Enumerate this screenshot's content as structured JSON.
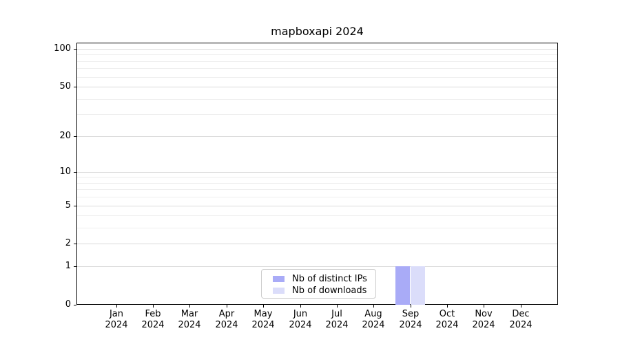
{
  "title": "mapboxapi 2024",
  "chart_data": {
    "type": "bar",
    "title": "mapboxapi 2024",
    "categories": [
      "Jan 2024",
      "Feb 2024",
      "Mar 2024",
      "Apr 2024",
      "May 2024",
      "Jun 2024",
      "Jul 2024",
      "Aug 2024",
      "Sep 2024",
      "Oct 2024",
      "Nov 2024",
      "Dec 2024"
    ],
    "series": [
      {
        "name": "Nb of distinct IPs",
        "color": "#a9abf7",
        "values": [
          0,
          0,
          0,
          0,
          0,
          0,
          0,
          0,
          1,
          0,
          0,
          0
        ]
      },
      {
        "name": "Nb of downloads",
        "color": "#dbddfa",
        "values": [
          0,
          0,
          0,
          0,
          0,
          0,
          0,
          0,
          1,
          0,
          0,
          0
        ]
      }
    ],
    "xlabel": "",
    "ylabel": "",
    "yscale": "log1p",
    "ylim": [
      0,
      112
    ],
    "yticks": [
      0,
      1,
      2,
      5,
      10,
      20,
      50,
      100
    ],
    "yticks_minor": [
      3,
      4,
      6,
      7,
      8,
      9,
      30,
      40,
      60,
      70,
      80,
      90
    ],
    "grid": "horizontal major and minor gridlines",
    "legend_position": "lower center",
    "bar_layout": "two bars per category, each 0.4 of slot width, group centered on tick"
  },
  "legend": {
    "items": [
      {
        "label": "Nb of distinct IPs",
        "swatch_color": "#a9abf7"
      },
      {
        "label": "Nb of downloads",
        "swatch_color": "#dbddfa"
      }
    ]
  },
  "colors": {
    "background": "#ffffff",
    "spine": "#000000",
    "grid_major": "#d9d9d9",
    "grid_minor": "#eeeeee",
    "text": "#000000",
    "legend_border": "#cccccc"
  }
}
